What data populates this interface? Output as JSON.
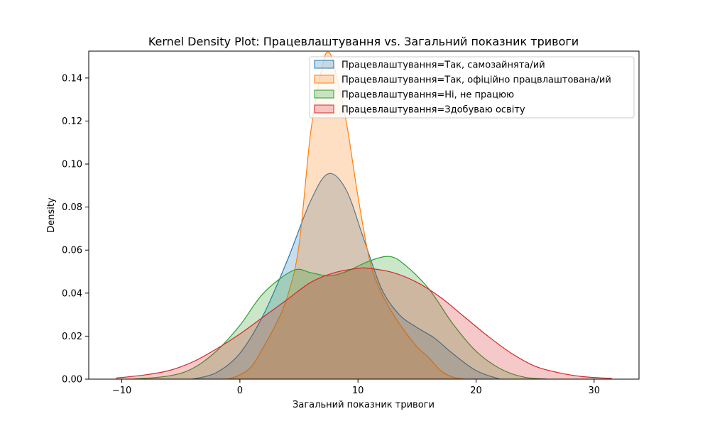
{
  "chart_data": {
    "type": "area",
    "title": "Kernel Density Plot: Працевлаштування vs. Загальний показник тривоги",
    "xlabel": "Загальний показник тривоги",
    "ylabel": "Density",
    "xlim": [
      -12.8,
      33.8
    ],
    "ylim": [
      0,
      0.1525
    ],
    "x_ticks": [
      -10,
      0,
      10,
      20,
      30
    ],
    "x_tick_labels": [
      "−10",
      "0",
      "10",
      "20",
      "30"
    ],
    "y_ticks": [
      0,
      0.02,
      0.04,
      0.06,
      0.08,
      0.1,
      0.12,
      0.14
    ],
    "y_tick_labels": [
      "0.00",
      "0.02",
      "0.04",
      "0.06",
      "0.08",
      "0.10",
      "0.12",
      "0.14"
    ],
    "grid": false,
    "legend_position": "top-right",
    "series": [
      {
        "name": "Працевлаштування=Так, самозайнята/ий",
        "color": "#1f77b4",
        "x": [
          -4,
          -2,
          0,
          2,
          4,
          6,
          7.5,
          9,
          10.5,
          12,
          13.5,
          15,
          16.5,
          18,
          20,
          22
        ],
        "y": [
          0.0,
          0.003,
          0.012,
          0.03,
          0.055,
          0.083,
          0.0955,
          0.088,
          0.065,
          0.042,
          0.03,
          0.024,
          0.019,
          0.012,
          0.004,
          0.0
        ]
      },
      {
        "name": "Працевлаштування=Так, офіційно працвлаштована/ий",
        "color": "#ff7f0e",
        "x": [
          -1,
          0,
          1,
          2,
          3,
          4,
          5,
          6,
          7,
          7.5,
          8,
          9,
          10,
          11,
          12,
          13,
          14,
          15,
          16,
          17,
          18,
          19
        ],
        "y": [
          0.0,
          0.002,
          0.006,
          0.015,
          0.025,
          0.038,
          0.062,
          0.115,
          0.146,
          0.152,
          0.145,
          0.12,
          0.085,
          0.055,
          0.04,
          0.03,
          0.022,
          0.015,
          0.01,
          0.004,
          0.001,
          0.0
        ]
      },
      {
        "name": "Працевлаштування=Ні, не працюю",
        "color": "#2ca02c",
        "x": [
          -9,
          -6,
          -4,
          -2,
          0,
          2,
          4.5,
          6,
          7.5,
          9,
          11,
          12.7,
          14,
          16,
          18,
          20,
          22,
          24,
          26
        ],
        "y": [
          0.0,
          0.0015,
          0.005,
          0.013,
          0.025,
          0.04,
          0.0505,
          0.0495,
          0.048,
          0.05,
          0.055,
          0.057,
          0.053,
          0.042,
          0.026,
          0.013,
          0.005,
          0.001,
          0.0
        ]
      },
      {
        "name": "Працевлаштування=Здобуваю освіту",
        "color": "#d62728",
        "x": [
          -10.5,
          -8,
          -6,
          -4,
          -2,
          0,
          2,
          4,
          6,
          8,
          10,
          11,
          13,
          15,
          17,
          19,
          21,
          23,
          25,
          27,
          29,
          31.5
        ],
        "y": [
          0.0005,
          0.002,
          0.004,
          0.008,
          0.014,
          0.021,
          0.029,
          0.037,
          0.045,
          0.0495,
          0.0515,
          0.0515,
          0.0495,
          0.045,
          0.038,
          0.029,
          0.02,
          0.012,
          0.006,
          0.003,
          0.0012,
          0.0003
        ]
      }
    ]
  }
}
